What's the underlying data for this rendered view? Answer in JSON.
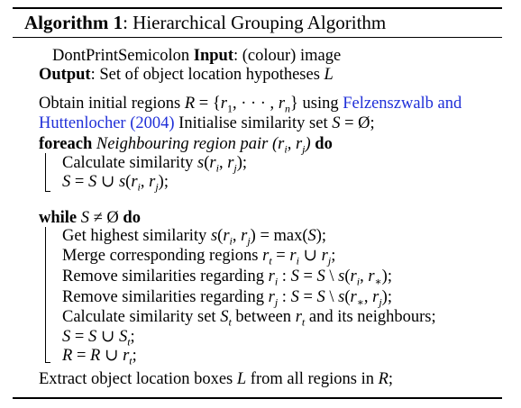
{
  "algorithm": {
    "label": "Algorithm 1",
    "title": ": Hierarchical Grouping Algorithm"
  },
  "header": {
    "dont_print": "DontPrintSemicolon",
    "input_kw": "Input",
    "input_text": ": (colour) image",
    "output_kw": "Output",
    "output_text": ": Set of object location hypotheses"
  },
  "body": {
    "obtain_text": "Obtain initial regions",
    "using_text": "using",
    "citation_1": "Felzenszwalb and",
    "citation_2": "Huttenlocher (2004)",
    "init_text": "Initialise similarity set",
    "foreach_kw": "foreach",
    "foreach_text": "Neighbouring region pair",
    "do_kw": "do",
    "calc_sim": "Calculate similarity",
    "while_kw": "while",
    "get_highest": "Get highest similarity",
    "merge": "Merge corresponding regions",
    "remove_i": "Remove similarities regarding",
    "remove_j": "Remove similarities regarding",
    "calc_set": "Calculate similarity set",
    "between": "between",
    "neighbours": "and its neighbours;",
    "extract": "Extract object location boxes",
    "from_all": "from all regions in"
  }
}
